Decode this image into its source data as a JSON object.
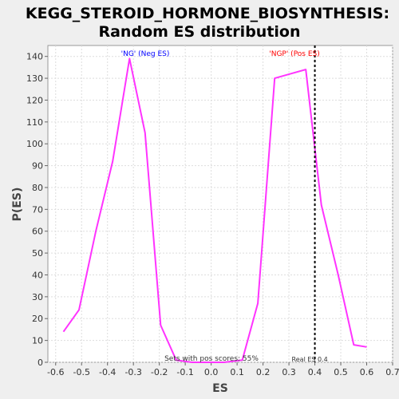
{
  "chart_data": {
    "type": "line",
    "title": [
      "KEGG_STEROID_HORMONE_BIOSYNTHESIS:",
      "Random ES distribution"
    ],
    "xlabel": "ES",
    "ylabel": "P(ES)",
    "xlim": [
      -0.63,
      0.7
    ],
    "ylim": [
      0,
      145
    ],
    "xticks": [
      -0.6,
      -0.5,
      -0.4,
      -0.3,
      -0.2,
      -0.1,
      0.0,
      0.1,
      0.2,
      0.3,
      0.4,
      0.5,
      0.6,
      0.7
    ],
    "xtick_labels": [
      "-0.6",
      "-0.5",
      "-0.4",
      "-0.3",
      "-0.2",
      "-0.1",
      "0.0",
      "0.1",
      "0.2",
      "0.3",
      "0.4",
      "0.5",
      "0.6",
      "0.7"
    ],
    "yticks": [
      0,
      10,
      20,
      30,
      40,
      50,
      60,
      70,
      80,
      90,
      100,
      110,
      120,
      130,
      140
    ],
    "grid": true,
    "series": [
      {
        "color": "#ff33ff",
        "x": [
          -0.57,
          -0.51,
          -0.445,
          -0.38,
          -0.315,
          -0.255,
          -0.195,
          -0.135,
          -0.075,
          -0.01,
          0.05,
          0.12,
          0.18,
          0.245,
          0.305,
          0.365,
          0.425,
          0.49,
          0.55,
          0.6
        ],
        "y": [
          14,
          24,
          60,
          92,
          139,
          105,
          17,
          1,
          0,
          0,
          0,
          1,
          27,
          130,
          132,
          134,
          72,
          40,
          8,
          7
        ]
      }
    ],
    "real_es": {
      "x": 0.4,
      "color": "#000000",
      "label": "Real ES 0.4"
    },
    "annotations": [
      {
        "text": "'NG' (Neg ES)",
        "color": "#0000ff"
      },
      {
        "text": "'NGP' (Pos ES)",
        "color": "#ff0000"
      },
      {
        "text": "Sets with pos scores: 55%",
        "color": "#333333"
      }
    ],
    "colors": {
      "background": "#efefef",
      "plot_bg": "#ffffff",
      "grid": "#dddddd"
    }
  }
}
